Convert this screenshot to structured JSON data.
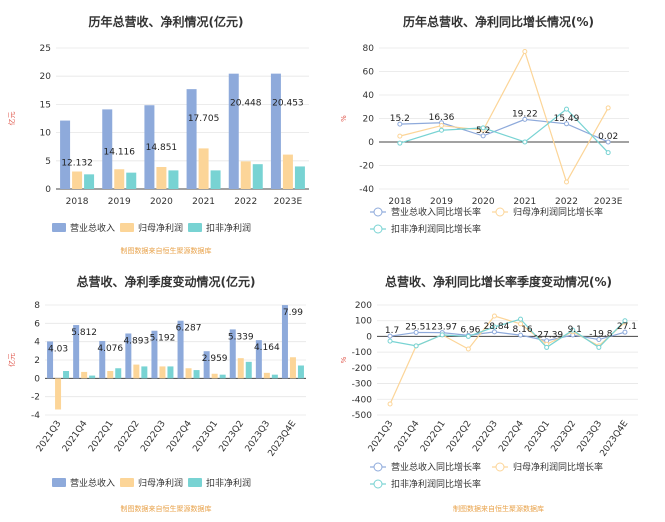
{
  "chart_data": [
    {
      "type": "bar",
      "title": "历年总营收、净利情况(亿元)",
      "ylabel": "亿元",
      "ylim": [
        0,
        25
      ],
      "yticks": [
        0,
        5,
        10,
        15,
        20,
        25
      ],
      "categories": [
        "2018",
        "2019",
        "2020",
        "2021",
        "2022",
        "2023E"
      ],
      "series": [
        {
          "name": "营业总收入",
          "color": "#8eaadb",
          "values": [
            12.132,
            14.116,
            14.851,
            17.705,
            20.448,
            20.453
          ]
        },
        {
          "name": "归母净利润",
          "color": "#fcd598",
          "values": [
            3.1,
            3.5,
            3.9,
            7.2,
            4.9,
            6.1
          ]
        },
        {
          "name": "扣非净利润",
          "color": "#78d3d3",
          "values": [
            2.6,
            2.9,
            3.3,
            3.3,
            4.4,
            4.0
          ]
        }
      ],
      "data_labels": [
        "12.132",
        "14.116",
        "14.851",
        "17.705",
        "20.448",
        "20.453"
      ],
      "source": "制图数据来自恒生聚源数据库",
      "legend": "bottom",
      "grid": true
    },
    {
      "type": "line",
      "title": "历年总营收、净利同比增长情况(%)",
      "ylabel": "%",
      "ylim": [
        -40,
        80
      ],
      "yticks": [
        -40,
        -20,
        0,
        20,
        40,
        60,
        80
      ],
      "categories": [
        "2018",
        "2019",
        "2020",
        "2021",
        "2022",
        "2023E"
      ],
      "series": [
        {
          "name": "营业总收入同比增长率",
          "color": "#8eaadb",
          "values": [
            15.2,
            16.36,
            5.2,
            19.22,
            15.49,
            0.02
          ]
        },
        {
          "name": "归母净利润同比增长率",
          "color": "#fcd598",
          "values": [
            5,
            14,
            10,
            77,
            -34,
            29
          ]
        },
        {
          "name": "扣非净利润同比增长率",
          "color": "#78d3d3",
          "values": [
            -1,
            10,
            12,
            0,
            28,
            -9
          ]
        }
      ],
      "data_labels": [
        "15.2",
        "16.36",
        "5.2",
        "19.22",
        "15.49",
        "0.02"
      ],
      "legend": "bottom",
      "grid": true
    },
    {
      "type": "bar",
      "title": "总营收、净利季度变动情况(亿元)",
      "ylabel": "亿元",
      "ylim": [
        -4,
        8
      ],
      "yticks": [
        -4,
        -2,
        0,
        2,
        4,
        6,
        8
      ],
      "categories": [
        "2021Q3",
        "2021Q4",
        "2022Q1",
        "2022Q2",
        "2022Q3",
        "2022Q4",
        "2023Q1",
        "2023Q2",
        "2023Q3",
        "2023Q4E"
      ],
      "series": [
        {
          "name": "营业总收入",
          "color": "#8eaadb",
          "values": [
            4.03,
            5.812,
            4.076,
            4.893,
            5.192,
            6.287,
            2.959,
            5.339,
            4.164,
            7.99
          ]
        },
        {
          "name": "归母净利润",
          "color": "#fcd598",
          "values": [
            -3.4,
            0.7,
            0.8,
            1.5,
            1.3,
            1.1,
            0.5,
            2.2,
            0.6,
            2.3
          ]
        },
        {
          "name": "扣非净利润",
          "color": "#78d3d3",
          "values": [
            0.8,
            0.3,
            1.1,
            1.3,
            1.3,
            0.9,
            0.4,
            1.8,
            0.4,
            1.4
          ]
        }
      ],
      "data_labels": [
        "4.03",
        "5.812",
        "4.076",
        "4.893",
        "5.192",
        "6.287",
        "2.959",
        "5.339",
        "4.164",
        "7.99"
      ],
      "source": "制图数据来自恒生聚源数据库",
      "legend": "bottom",
      "grid": true
    },
    {
      "type": "line",
      "title": "总营收、净利同比增长率季度变动情况(%)",
      "ylabel": "%",
      "ylim": [
        -500,
        200
      ],
      "yticks": [
        -500,
        -400,
        -300,
        -200,
        -100,
        0,
        100,
        200
      ],
      "categories": [
        "2021Q3",
        "2021Q4",
        "2022Q1",
        "2022Q2",
        "2022Q3",
        "2022Q4",
        "2023Q1",
        "2023Q2",
        "2023Q3",
        "2023Q4E"
      ],
      "series": [
        {
          "name": "营业总收入同比增长率",
          "color": "#8eaadb",
          "values": [
            1.7,
            25.51,
            23.97,
            6.96,
            28.84,
            8.16,
            -27.39,
            9.1,
            -19.8,
            27.1
          ]
        },
        {
          "name": "归母净利润同比增长率",
          "color": "#fcd598",
          "values": [
            -430,
            -60,
            10,
            -80,
            130,
            80,
            -50,
            30,
            -60,
            90
          ]
        },
        {
          "name": "扣非净利润同比增长率",
          "color": "#78d3d3",
          "values": [
            -30,
            -60,
            10,
            0,
            60,
            110,
            -70,
            40,
            -70,
            100
          ]
        }
      ],
      "data_labels": [
        "1.7",
        "25.51",
        "23.97",
        "6.96",
        "28.84",
        "8.16",
        "-27.39",
        "9.1",
        "-19.8",
        "27.1"
      ],
      "source": "制图数据来自恒生聚源数据库",
      "legend": "bottom",
      "grid": true
    }
  ]
}
